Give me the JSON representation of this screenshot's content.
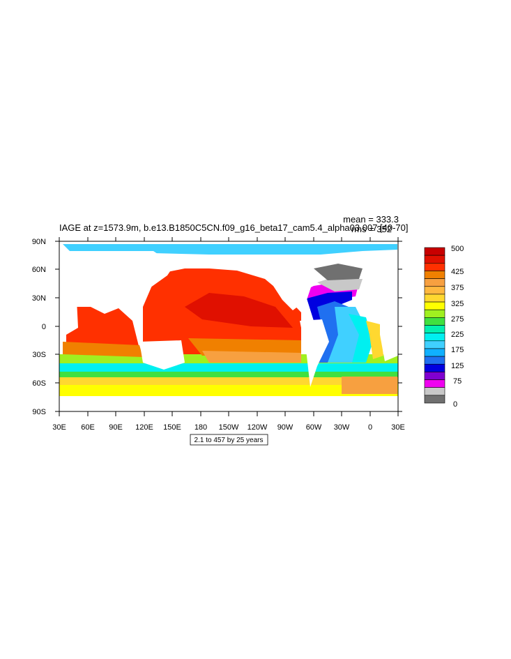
{
  "title": "IAGE at z=1573.9m, b.e13.B1850C5CN.f09_g16_beta17_cam5.4_alpha03.007 [40-70]",
  "stats": {
    "mean": "mean = 333.3",
    "rms": "rms = 352"
  },
  "info_box": "2.1 to 457 by 25 years",
  "lat_labels": [
    "90N",
    "60N",
    "30N",
    "0",
    "30S",
    "60S",
    "90S"
  ],
  "lon_labels": [
    "30E",
    "60E",
    "90E",
    "120E",
    "150E",
    "180",
    "150W",
    "120W",
    "90W",
    "60W",
    "30W",
    "0",
    "30E"
  ],
  "colorbar": {
    "labels": [
      "500",
      "425",
      "375",
      "325",
      "275",
      "225",
      "175",
      "125",
      "75",
      "0"
    ],
    "colors": [
      "#c80000",
      "#e01000",
      "#ff3000",
      "#f08000",
      "#f7a040",
      "#ffb840",
      "#ffd830",
      "#ffff00",
      "#a0f020",
      "#40e040",
      "#00f0b0",
      "#00f0f0",
      "#40d0ff",
      "#10b0ff",
      "#2070f0",
      "#0000e0",
      "#8000d0",
      "#f000f0",
      "#c8c8c8",
      "#707070"
    ]
  }
}
